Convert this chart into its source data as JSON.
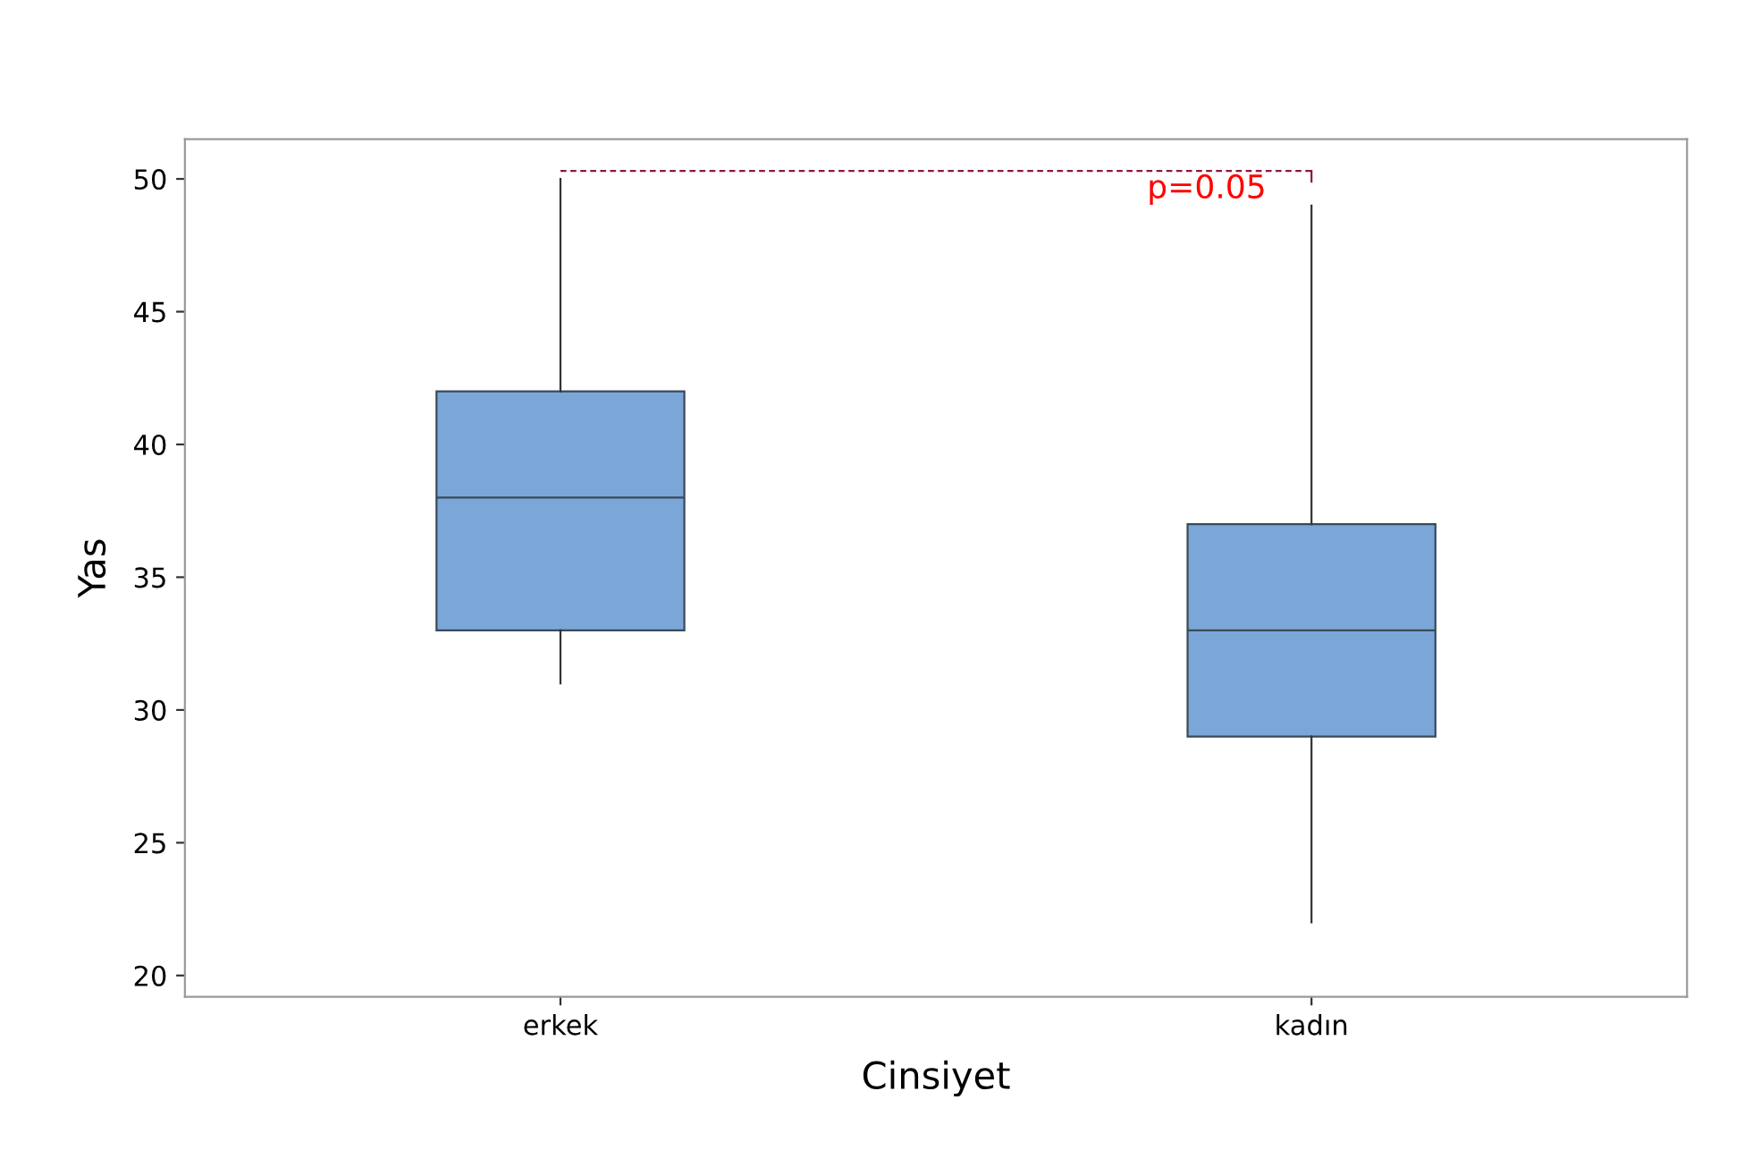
{
  "chart_data": {
    "type": "box",
    "xlabel": "Cinsiyet",
    "ylabel": "Yas",
    "categories": [
      "erkek",
      "kadın"
    ],
    "boxes": [
      {
        "low": 31,
        "q1": 33,
        "median": 38,
        "q3": 42,
        "high": 50
      },
      {
        "low": 22,
        "q1": 29,
        "median": 33,
        "q3": 37,
        "high": 49
      }
    ],
    "color": "#7ba7d8",
    "ylim": [
      19.2,
      51.5
    ],
    "yticks": [
      20,
      25,
      30,
      35,
      40,
      45,
      50
    ],
    "annotations": [
      "p=0.05"
    ],
    "ref_lines": [
      {
        "axis": "y",
        "value": 50.3,
        "color": "#8b1a3a",
        "line_style": "dashed"
      }
    ],
    "grid": false,
    "legend": false
  }
}
